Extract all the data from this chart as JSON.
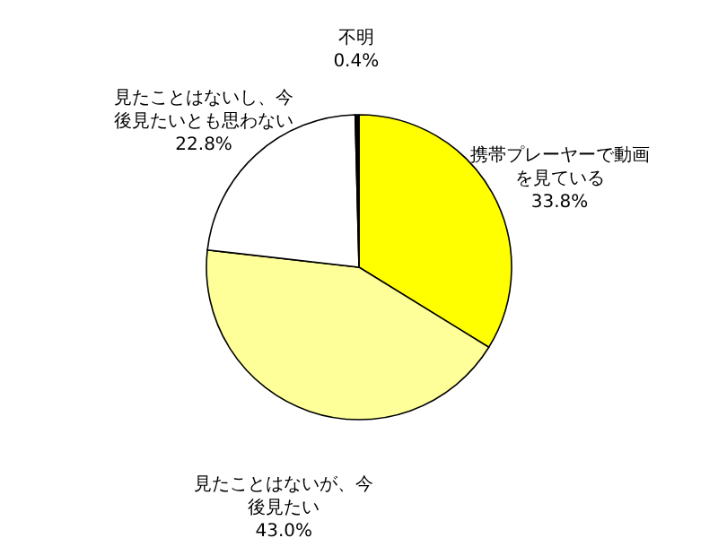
{
  "chart_data": {
    "type": "pie",
    "categories": [
      "携帯プレーヤーで動画を見ている",
      "見たことはないが、今後見たい",
      "見たことはないし、今後見たいとも思わない",
      "不明"
    ],
    "values": [
      33.8,
      43.0,
      22.8,
      0.4
    ],
    "colors": [
      "#ffff00",
      "#ffff99",
      "#ffffff",
      "#000000"
    ],
    "value_labels": [
      "33.8%",
      "43.0%",
      "22.8%",
      "0.4%"
    ],
    "legend": false
  }
}
